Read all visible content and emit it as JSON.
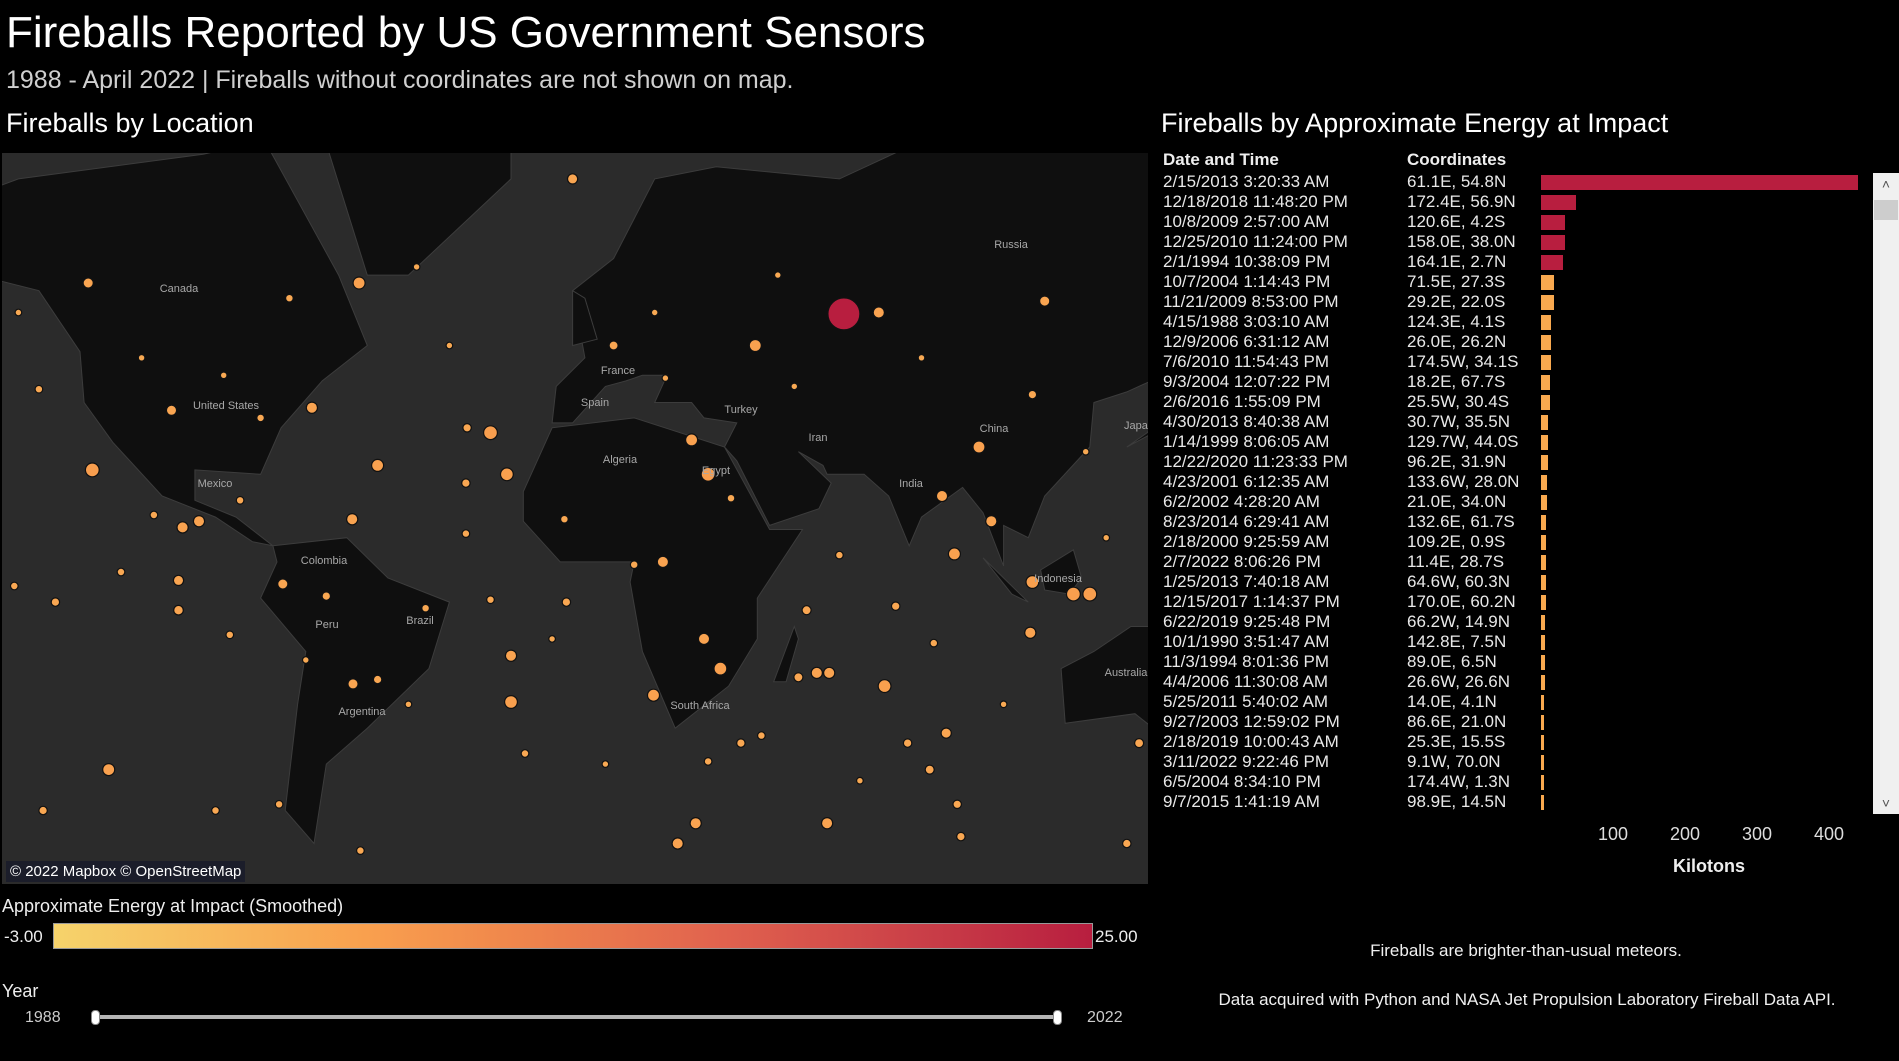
{
  "header": {
    "title": "Fireballs Reported by US Government Sensors",
    "subtitle": "1988 - April 2022 | Fireballs without coordinates are not shown on map."
  },
  "map_section": {
    "title": "Fireballs by Location",
    "attribution": "© 2022 Mapbox © OpenStreetMap",
    "labels": [
      "Canada",
      "United States",
      "Mexico",
      "Colombia",
      "Peru",
      "Brazil",
      "Argentina",
      "South Africa",
      "Algeria",
      "Egypt",
      "France",
      "Spain",
      "Turkey",
      "Iran",
      "India",
      "China",
      "Russia",
      "Japan",
      "Indonesia",
      "Australia"
    ],
    "colors": {
      "ocean": "#2b2b2b",
      "land": "#0f0f0f",
      "dot": "#fbb04e",
      "max_dot": "#b81e3f"
    }
  },
  "legend": {
    "title": "Approximate Energy at Impact (Smoothed)",
    "min": "-3.00",
    "max": "25.00",
    "colors": [
      "#f6d36b",
      "#f9a04e",
      "#ef854c",
      "#e0614e",
      "#c83c47",
      "#b81e3f"
    ]
  },
  "year_filter": {
    "label": "Year",
    "min": "1988",
    "max": "2022"
  },
  "energy_section": {
    "title": "Fireballs by Approximate Energy at Impact",
    "col_date": "Date and Time",
    "col_coords": "Coordinates",
    "scroll_up": "˄",
    "scroll_down": "˅"
  },
  "notes": {
    "line1": "Fireballs are brighter-than-usual meteors.",
    "line2": "Data acquired with Python and NASA Jet Propulsion Laboratory Fireball Data API."
  },
  "chart_data": [
    {
      "type": "scatter",
      "title": "Fireballs by Location",
      "projection": "web-mercator",
      "point_fields": [
        "longitude",
        "latitude",
        "energy_kt"
      ],
      "points": [
        [
          61.1,
          54.8,
          440
        ],
        [
          -122,
          26,
          1.5
        ],
        [
          -25,
          34,
          1.5
        ],
        [
          -21,
          25,
          1.2
        ],
        [
          -52.5,
          27,
          1.0
        ],
        [
          -57,
          59,
          1.0
        ],
        [
          39.5,
          50,
          1.0
        ],
        [
          69.6,
          55,
          0.8
        ],
        [
          110,
          56.6,
          0.6
        ],
        [
          94,
          31,
          1.0
        ],
        [
          85,
          20,
          0.8
        ],
        [
          97,
          14,
          0.8
        ],
        [
          88,
          6,
          1.0
        ],
        [
          107,
          -1,
          1.2
        ],
        [
          117,
          -4,
          1.5
        ],
        [
          121,
          -4,
          1.5
        ],
        [
          106.5,
          -13.5,
          0.8
        ],
        [
          71,
          -26,
          1.2
        ],
        [
          54.5,
          -23,
          0.8
        ],
        [
          57.5,
          -23,
          0.8
        ],
        [
          31,
          -22,
          1.2
        ],
        [
          27,
          -15,
          0.8
        ],
        [
          14.7,
          -28,
          1.0
        ],
        [
          17,
          4,
          0.8
        ],
        [
          28,
          25,
          1.5
        ],
        [
          24,
          32.5,
          1.0
        ],
        [
          -20,
          -29.5,
          1.2
        ],
        [
          -20,
          -19,
          0.8
        ],
        [
          -75.6,
          -1.5,
          0.6
        ],
        [
          -101,
          -0.6,
          0.6
        ],
        [
          -100,
          12.5,
          0.8
        ],
        [
          -96,
          14,
          0.8
        ],
        [
          -118,
          -43,
          1.0
        ],
        [
          -68.5,
          39,
          0.8
        ],
        [
          -102.7,
          38.5,
          0.6
        ],
        [
          -58.7,
          14.5,
          0.8
        ],
        [
          25,
          -52,
          0.8
        ],
        [
          20.6,
          -55,
          0.8
        ],
        [
          57,
          -52,
          0.8
        ],
        [
          86,
          -36,
          0.6
        ],
        [
          129,
          -62.5,
          0.8
        ],
        [
          -5,
          70,
          0.6
        ],
        [
          -123,
          59,
          0.6
        ],
        [
          -140,
          55,
          0.1
        ],
        [
          -135,
          42.5,
          0.2
        ],
        [
          -43,
          61,
          0.1
        ],
        [
          5,
          50,
          0.4
        ],
        [
          17.6,
          44.5,
          0.1
        ],
        [
          49,
          43,
          0.1
        ],
        [
          107,
          41.5,
          0.3
        ],
        [
          33.6,
          19.5,
          0.2
        ],
        [
          -7,
          14.5,
          0.2
        ],
        [
          10,
          3.3,
          0.2
        ],
        [
          52,
          -8,
          0.4
        ],
        [
          41,
          -36.5,
          0.2
        ],
        [
          36,
          -38,
          0.3
        ],
        [
          76.6,
          -38,
          0.3
        ],
        [
          82,
          -43,
          0.4
        ],
        [
          88.7,
          -49,
          0.3
        ],
        [
          89.6,
          -54,
          0.3
        ],
        [
          -134,
          -50,
          0.3
        ],
        [
          -92,
          -50,
          0.2
        ],
        [
          -76.5,
          -49,
          0.2
        ],
        [
          -56.7,
          -56,
          0.2
        ],
        [
          -16.6,
          -40,
          0.2
        ],
        [
          3,
          -42,
          0.1
        ],
        [
          28,
          -41.5,
          0.2
        ],
        [
          50,
          -24,
          0.4
        ],
        [
          73.7,
          -7,
          0.3
        ],
        [
          83,
          -16,
          0.2
        ],
        [
          133,
          -38,
          0.4
        ],
        [
          130,
          -55,
          0.3
        ],
        [
          -88.5,
          -14,
          0.2
        ],
        [
          -101,
          -8,
          0.5
        ],
        [
          -131,
          -6,
          0.3
        ],
        [
          -141,
          -2,
          0.2
        ],
        [
          -115,
          1.5,
          0.2
        ],
        [
          -107,
          15.5,
          0.2
        ],
        [
          -30.7,
          35,
          0.3
        ],
        [
          -31,
          23,
          0.3
        ],
        [
          -31,
          11,
          0.2
        ],
        [
          -40.8,
          -7.5,
          0.2
        ],
        [
          -58.5,
          -25.5,
          0.6
        ],
        [
          -52.5,
          -24.5,
          0.3
        ],
        [
          -65,
          -4.5,
          0.3
        ],
        [
          60,
          5.7,
          0.2
        ],
        [
          -6.5,
          -6,
          0.3
        ],
        [
          -25,
          -5.4,
          0.2
        ],
        [
          -86,
          19,
          0.2
        ],
        [
          -81,
          37,
          0.2
        ],
        [
          -74,
          57,
          0.2
        ],
        [
          -110,
          48,
          0.1
        ],
        [
          -90,
          45,
          0.1
        ],
        [
          -70,
          -20,
          0.1
        ],
        [
          15,
          55,
          0.1
        ],
        [
          45,
          60,
          0.1
        ],
        [
          80,
          48,
          0.1
        ],
        [
          120,
          30,
          0.1
        ],
        [
          125,
          10,
          0.1
        ],
        [
          -10,
          -15,
          0.1
        ],
        [
          -45,
          -30,
          0.1
        ],
        [
          65,
          -45,
          0.1
        ],
        [
          100,
          -30,
          0.1
        ],
        [
          -150,
          20,
          0.1
        ],
        [
          -160,
          -30,
          0.1
        ],
        [
          -35,
          50,
          0.1
        ],
        [
          140,
          -20,
          0.1
        ]
      ]
    },
    {
      "type": "bar",
      "orientation": "horizontal",
      "title": "Fireballs by Approximate Energy at Impact",
      "xlabel": "Kilotons",
      "xticks": [
        100,
        200,
        300,
        400
      ],
      "xlim": [
        0,
        440
      ],
      "columns": [
        "Date and Time",
        "Coordinates"
      ],
      "rows": [
        {
          "date": "2/15/2013 3:20:33 AM",
          "coords": "61.1E, 54.8N",
          "kt": 440
        },
        {
          "date": "12/18/2018 11:48:20 PM",
          "coords": "172.4E, 56.9N",
          "kt": 49
        },
        {
          "date": "10/8/2009 2:57:00 AM",
          "coords": "120.6E, 4.2S",
          "kt": 33
        },
        {
          "date": "12/25/2010 11:24:00 PM",
          "coords": "158.0E, 38.0N",
          "kt": 33
        },
        {
          "date": "2/1/1994 10:38:09 PM",
          "coords": "164.1E, 2.7N",
          "kt": 30
        },
        {
          "date": "10/7/2004 1:14:43 PM",
          "coords": "71.5E, 27.3S",
          "kt": 18
        },
        {
          "date": "11/21/2009 8:53:00 PM",
          "coords": "29.2E, 22.0S",
          "kt": 18
        },
        {
          "date": "4/15/1988 3:03:10 AM",
          "coords": "124.3E, 4.1S",
          "kt": 14
        },
        {
          "date": "12/9/2006 6:31:12 AM",
          "coords": "26.0E, 26.2N",
          "kt": 14
        },
        {
          "date": "7/6/2010 11:54:43 PM",
          "coords": "174.5W, 34.1S",
          "kt": 14
        },
        {
          "date": "9/3/2004 12:07:22 PM",
          "coords": "18.2E, 67.7S",
          "kt": 13
        },
        {
          "date": "2/6/2016 1:55:09 PM",
          "coords": "25.5W, 30.4S",
          "kt": 13
        },
        {
          "date": "4/30/2013 8:40:38 AM",
          "coords": "30.7W, 35.5N",
          "kt": 10
        },
        {
          "date": "1/14/1999 8:06:05 AM",
          "coords": "129.7W, 44.0S",
          "kt": 10
        },
        {
          "date": "12/22/2020 11:23:33 PM",
          "coords": "96.2E, 31.9N",
          "kt": 10
        },
        {
          "date": "4/23/2001 6:12:35 AM",
          "coords": "133.6W, 28.0N",
          "kt": 8.5
        },
        {
          "date": "6/2/2002 4:28:20 AM",
          "coords": "21.0E, 34.0N",
          "kt": 8.5
        },
        {
          "date": "8/23/2014 6:29:41 AM",
          "coords": "132.6E, 61.7S",
          "kt": 7
        },
        {
          "date": "2/18/2000 9:25:59 AM",
          "coords": "109.2E, 0.9S",
          "kt": 7
        },
        {
          "date": "2/7/2022 8:06:26 PM",
          "coords": "11.4E, 28.7S",
          "kt": 7
        },
        {
          "date": "1/25/2013 7:40:18 AM",
          "coords": "64.6W, 60.3N",
          "kt": 7
        },
        {
          "date": "12/15/2017 1:14:37 PM",
          "coords": "170.0E, 60.2N",
          "kt": 7
        },
        {
          "date": "6/22/2019 9:25:48 PM",
          "coords": "66.2W, 14.9N",
          "kt": 5.5
        },
        {
          "date": "10/1/1990 3:51:47 AM",
          "coords": "142.8E, 7.5N",
          "kt": 5.5
        },
        {
          "date": "11/3/1994 8:01:36 PM",
          "coords": "89.0E, 6.5N",
          "kt": 5.5
        },
        {
          "date": "4/4/2006 11:30:08 AM",
          "coords": "26.6W, 26.6N",
          "kt": 5.5
        },
        {
          "date": "5/25/2011 5:40:02 AM",
          "coords": "14.0E, 4.1N",
          "kt": 4.5
        },
        {
          "date": "9/27/2003 12:59:02 PM",
          "coords": "86.6E, 21.0N",
          "kt": 4.5
        },
        {
          "date": "2/18/2019 10:00:43 AM",
          "coords": "25.3E, 15.5S",
          "kt": 4.5
        },
        {
          "date": "3/11/2022 9:22:46 PM",
          "coords": "9.1W, 70.0N",
          "kt": 4.5
        },
        {
          "date": "6/5/2004 8:34:10 PM",
          "coords": "174.4W, 1.3N",
          "kt": 4.5
        },
        {
          "date": "9/7/2015 1:41:19 AM",
          "coords": "98.9E, 14.5N",
          "kt": 4.5
        }
      ]
    }
  ]
}
